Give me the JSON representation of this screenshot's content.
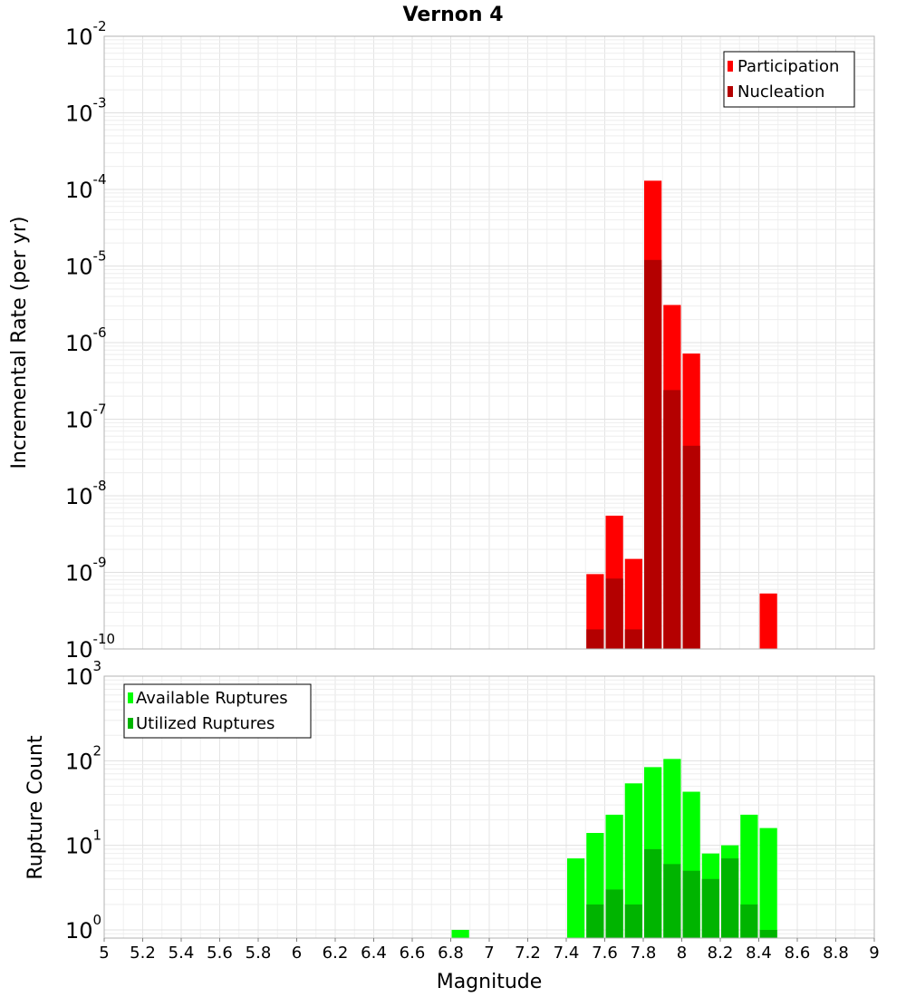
{
  "chart_data": [
    {
      "type": "bar",
      "title": "Vernon 4",
      "ylabel": "Incremental Rate (per yr)",
      "xlabel": "",
      "yscale": "log",
      "ylim": [
        1e-10,
        0.01
      ],
      "xlim": [
        5,
        9
      ],
      "bar_width": 0.1,
      "legend": "top-right",
      "grid": true,
      "ytick_exponents": [
        -2,
        -3,
        -4,
        -5,
        -6,
        -7,
        -8,
        -9,
        -10
      ],
      "series": [
        {
          "name": "Participation",
          "color": "#ff0000",
          "points": [
            {
              "x": 7.55,
              "y": 9.5e-10
            },
            {
              "x": 7.65,
              "y": 5.5e-09
            },
            {
              "x": 7.75,
              "y": 1.5e-09
            },
            {
              "x": 7.85,
              "y": 0.00013
            },
            {
              "x": 7.95,
              "y": 3.1e-06
            },
            {
              "x": 8.05,
              "y": 7.2e-07
            },
            {
              "x": 8.45,
              "y": 5.3e-10
            }
          ]
        },
        {
          "name": "Nucleation",
          "color": "#b40000",
          "points": [
            {
              "x": 7.55,
              "y": 1.8e-10
            },
            {
              "x": 7.65,
              "y": 8.3e-10
            },
            {
              "x": 7.75,
              "y": 1.8e-10
            },
            {
              "x": 7.85,
              "y": 1.2e-05
            },
            {
              "x": 7.95,
              "y": 2.4e-07
            },
            {
              "x": 8.05,
              "y": 4.5e-08
            }
          ]
        }
      ]
    },
    {
      "type": "bar",
      "title": "",
      "ylabel": "Rupture Count",
      "xlabel": "Magnitude",
      "yscale": "log",
      "ylim": [
        0.8,
        1000
      ],
      "xlim": [
        5,
        9
      ],
      "bar_width": 0.1,
      "legend": "top-left",
      "grid": true,
      "ytick_exponents": [
        3,
        2,
        1,
        0
      ],
      "xticks": [
        "5",
        "5.2",
        "5.4",
        "5.6",
        "5.8",
        "6",
        "6.2",
        "6.4",
        "6.6",
        "6.8",
        "7",
        "7.2",
        "7.4",
        "7.6",
        "7.8",
        "8",
        "8.2",
        "8.4",
        "8.6",
        "8.8",
        "9"
      ],
      "series": [
        {
          "name": "Available Ruptures",
          "color": "#00ff00",
          "points": [
            {
              "x": 6.85,
              "y": 1
            },
            {
              "x": 7.45,
              "y": 7
            },
            {
              "x": 7.55,
              "y": 14
            },
            {
              "x": 7.65,
              "y": 23
            },
            {
              "x": 7.75,
              "y": 54
            },
            {
              "x": 7.85,
              "y": 84
            },
            {
              "x": 7.95,
              "y": 105
            },
            {
              "x": 8.05,
              "y": 43
            },
            {
              "x": 8.15,
              "y": 8
            },
            {
              "x": 8.25,
              "y": 10
            },
            {
              "x": 8.35,
              "y": 23
            },
            {
              "x": 8.45,
              "y": 16
            }
          ]
        },
        {
          "name": "Utilized Ruptures",
          "color": "#00b400",
          "points": [
            {
              "x": 7.55,
              "y": 2
            },
            {
              "x": 7.65,
              "y": 3
            },
            {
              "x": 7.75,
              "y": 2
            },
            {
              "x": 7.85,
              "y": 9
            },
            {
              "x": 7.95,
              "y": 6
            },
            {
              "x": 8.05,
              "y": 5
            },
            {
              "x": 8.15,
              "y": 4
            },
            {
              "x": 8.25,
              "y": 7
            },
            {
              "x": 8.35,
              "y": 2
            },
            {
              "x": 8.45,
              "y": 1
            }
          ]
        }
      ]
    }
  ]
}
